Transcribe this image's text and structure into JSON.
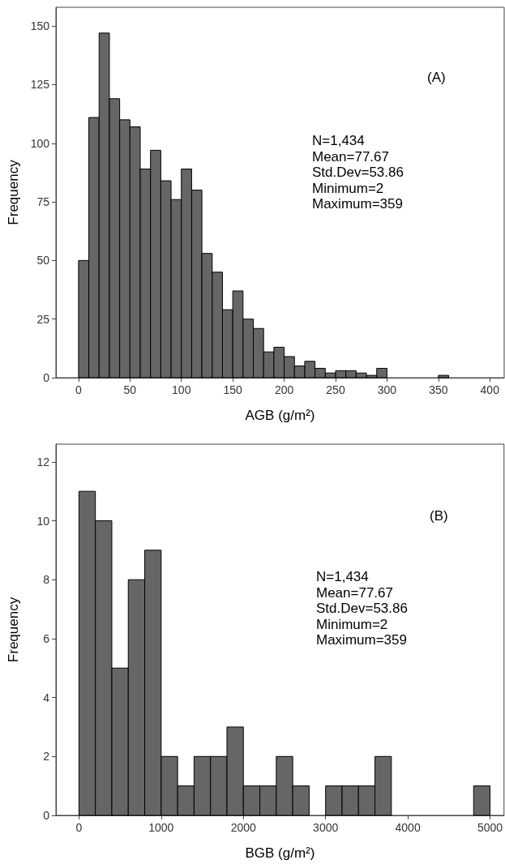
{
  "chart_data": [
    {
      "type": "histogram",
      "xlabel": "AGB (g/m²)",
      "ylabel": "Frequency",
      "color": "#666666",
      "bins": [
        0,
        10,
        20,
        30,
        40,
        50,
        60,
        70,
        80,
        90,
        100,
        110,
        120,
        130,
        140,
        150,
        160,
        170,
        180,
        190,
        200,
        210,
        220,
        230,
        240,
        250,
        260,
        270,
        280,
        290,
        300,
        310,
        320,
        330,
        340,
        350,
        360
      ],
      "values": [
        50,
        111,
        147,
        119,
        110,
        107,
        89,
        97,
        84,
        76,
        89,
        80,
        53,
        45,
        29,
        37,
        25,
        21,
        11,
        13,
        9,
        5,
        7,
        4,
        2,
        3,
        3,
        2,
        1,
        4,
        0,
        0,
        0,
        0,
        0,
        1
      ],
      "xlim": [
        -22,
        414
      ],
      "xticks": [
        0,
        50,
        100,
        150,
        200,
        250,
        300,
        350,
        400
      ],
      "ylim": [
        0,
        158
      ],
      "yticks": [
        0,
        25,
        50,
        75,
        100,
        125,
        150
      ],
      "grid": false,
      "annotations": [
        "(A)",
        "N=1,434",
        "Mean=77.67",
        "Std.Dev=53.86",
        "Minimum=2",
        "Maximum=359"
      ]
    },
    {
      "type": "histogram",
      "xlabel": "BGB (g/m²)",
      "ylabel": "Frequency",
      "color": "#666666",
      "bins": [
        0,
        200,
        400,
        600,
        800,
        1000,
        1200,
        1400,
        1600,
        1800,
        2000,
        2200,
        2400,
        2600,
        2800,
        3000,
        3200,
        3400,
        3600,
        3800,
        4000,
        4200,
        4400,
        4600,
        4800,
        5000
      ],
      "values": [
        11,
        10,
        5,
        8,
        9,
        2,
        1,
        2,
        2,
        3,
        1,
        1,
        2,
        1,
        0,
        1,
        1,
        1,
        2,
        0,
        0,
        0,
        0,
        0,
        1
      ],
      "xlim": [
        -280,
        5170
      ],
      "xticks": [
        0,
        1000,
        2000,
        3000,
        4000,
        5000
      ],
      "ylim": [
        0,
        12.6
      ],
      "yticks": [
        0,
        2,
        4,
        6,
        8,
        10,
        12
      ],
      "grid": false,
      "annotations": [
        "(B)",
        "N=1,434",
        "Mean=77.67",
        "Std.Dev=53.86",
        "Minimum=2",
        "Maximum=359"
      ]
    }
  ]
}
